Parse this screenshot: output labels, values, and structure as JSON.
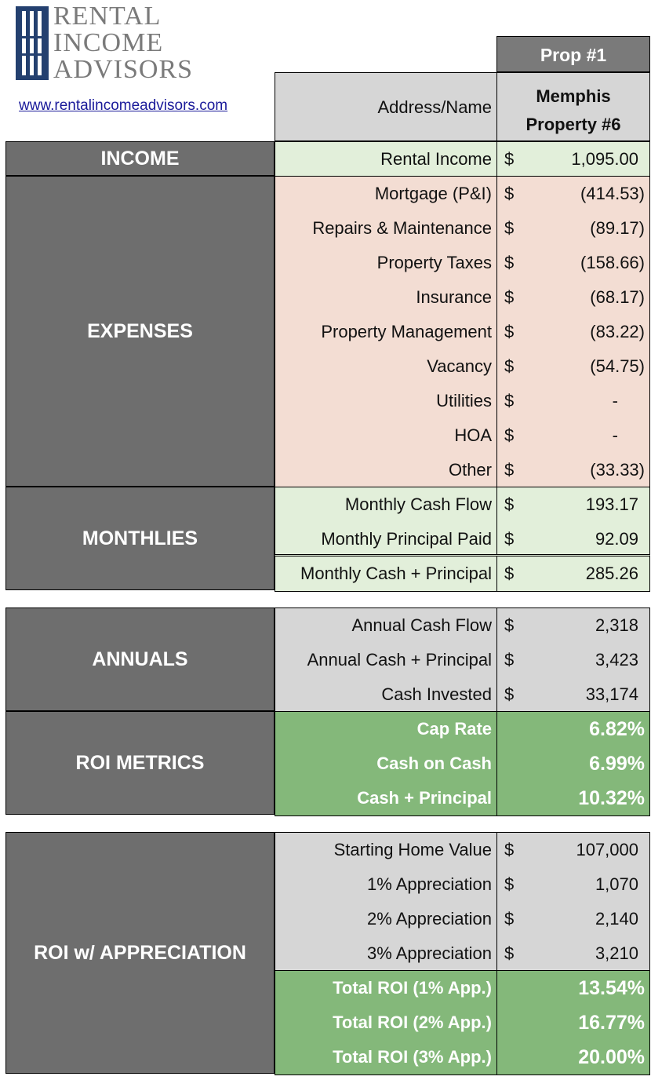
{
  "brand": {
    "line1": "RENTAL",
    "line2": "INCOME",
    "line3": "ADVISORS",
    "website": "www.rentalincomeadvisors.com"
  },
  "header": {
    "prop_label": "Prop #1",
    "address_label": "Address/Name",
    "property_name_line1": "Memphis",
    "property_name_line2": "Property #6"
  },
  "currency": "$",
  "income": {
    "section": "INCOME",
    "rows": [
      {
        "label": "Rental Income",
        "value": "1,095.00"
      }
    ]
  },
  "expenses": {
    "section": "EXPENSES",
    "rows": [
      {
        "label": "Mortgage (P&I)",
        "value": "(414.53)"
      },
      {
        "label": "Repairs & Maintenance",
        "value": "(89.17)"
      },
      {
        "label": "Property Taxes",
        "value": "(158.66)"
      },
      {
        "label": "Insurance",
        "value": "(68.17)"
      },
      {
        "label": "Property Management",
        "value": "(83.22)"
      },
      {
        "label": "Vacancy",
        "value": "(54.75)"
      },
      {
        "label": "Utilities",
        "value": "-"
      },
      {
        "label": "HOA",
        "value": "-"
      },
      {
        "label": "Other",
        "value": "(33.33)"
      }
    ]
  },
  "monthlies": {
    "section": "MONTHLIES",
    "rows": [
      {
        "label": "Monthly Cash Flow",
        "value": "193.17"
      },
      {
        "label": "Monthly Principal Paid",
        "value": "92.09"
      }
    ],
    "total": {
      "label": "Monthly Cash + Principal",
      "value": "285.26"
    }
  },
  "annuals": {
    "section": "ANNUALS",
    "rows": [
      {
        "label": "Annual Cash Flow",
        "value": "2,318"
      },
      {
        "label": "Annual Cash + Principal",
        "value": "3,423"
      },
      {
        "label": "Cash Invested",
        "value": "33,174"
      }
    ]
  },
  "roi_metrics": {
    "section": "ROI METRICS",
    "rows": [
      {
        "label": "Cap Rate",
        "value": "6.82%"
      },
      {
        "label": "Cash on Cash",
        "value": "6.99%"
      },
      {
        "label": "Cash + Principal",
        "value": "10.32%"
      }
    ]
  },
  "roi_appreciation": {
    "section": "ROI w/ APPRECIATION",
    "rows": [
      {
        "label": "Starting Home Value",
        "value": "107,000"
      },
      {
        "label": "1% Appreciation",
        "value": "1,070"
      },
      {
        "label": "2% Appreciation",
        "value": "2,140"
      },
      {
        "label": "3% Appreciation",
        "value": "3,210"
      }
    ],
    "metrics": [
      {
        "label": "Total ROI (1% App.)",
        "value": "13.54%"
      },
      {
        "label": "Total ROI (2% App.)",
        "value": "16.77%"
      },
      {
        "label": "Total ROI (3% App.)",
        "value": "20.00%"
      }
    ]
  },
  "colors": {
    "section_bg": "#6e6e6e",
    "income_bg": "#e2efda",
    "expense_bg": "#f3ddd3",
    "annual_bg": "#d6d6d6",
    "metric_bg": "#84b87a"
  }
}
